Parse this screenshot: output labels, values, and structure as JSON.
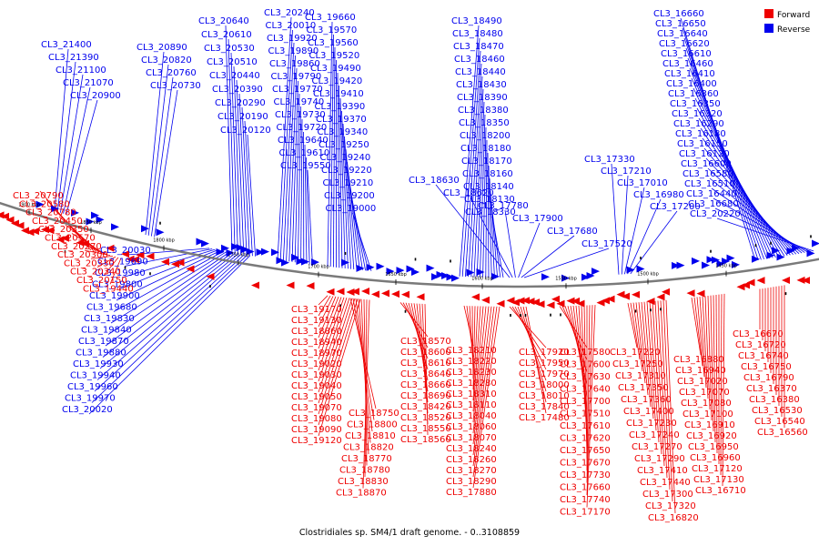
{
  "colors": {
    "forward": "#ee0000",
    "reverse": "#0000ee",
    "backbone": "#7a7a7a",
    "tick": "#000000"
  },
  "legend": [
    {
      "name": "Forward",
      "color": "#ee0000"
    },
    {
      "name": "Reverse",
      "color": "#0000ee"
    }
  ],
  "caption": "Clostridiales sp. SM4/1 draft genome. - 0..3108859",
  "axis": {
    "unit": "kbp",
    "ticks": [
      1900,
      1850,
      1800,
      1750,
      1700,
      1650,
      1600,
      1550,
      1500,
      1450
    ]
  },
  "reverse_labels": [
    "CL3_21400",
    "CL3_21390",
    "CL3_21100",
    "CL3_21070",
    "CL3_20900",
    "CL3_20890",
    "CL3_20820",
    "CL3_20760",
    "CL3_20730",
    "CL3_20640",
    "CL3_20610",
    "CL3_20530",
    "CL3_20510",
    "CL3_20440",
    "CL3_20390",
    "CL3_20290",
    "CL3_20190",
    "CL3_20120",
    "CL3_20240",
    "CL3_20010",
    "CL3_19920",
    "CL3_19890",
    "CL3_19860",
    "CL3_19790",
    "CL3_19770",
    "CL3_19740",
    "CL3_19730",
    "CL3_19720",
    "CL3_19640",
    "CL3_19610",
    "CL3_19550",
    "CL3_19660",
    "CL3_19570",
    "CL3_19560",
    "CL3_19520",
    "CL3_19490",
    "CL3_19420",
    "CL3_19410",
    "CL3_19390",
    "CL3_19370",
    "CL3_19340",
    "CL3_19250",
    "CL3_19240",
    "CL3_19220",
    "CL3_19210",
    "CL3_19200",
    "CL3_19000",
    "CL3_18490",
    "CL3_18480",
    "CL3_18470",
    "CL3_18460",
    "CL3_18440",
    "CL3_18430",
    "CL3_18390",
    "CL3_18380",
    "CL3_18350",
    "CL3_18200",
    "CL3_18180",
    "CL3_18170",
    "CL3_18160",
    "CL3_18140",
    "CL3_18130",
    "CL3_18330",
    "CL3_18630",
    "CL3_18620",
    "CL3_17780",
    "CL3_17900",
    "CL3_17680",
    "CL3_17520",
    "CL3_17330",
    "CL3_17210",
    "CL3_17010",
    "CL3_16980",
    "CL3_17200",
    "CL3_16660",
    "CL3_16650",
    "CL3_16640",
    "CL3_16620",
    "CL3_16610",
    "CL3_16460",
    "CL3_16410",
    "CL3_16400",
    "CL3_16360",
    "CL3_16350",
    "CL3_16320",
    "CL3_16290",
    "CL3_16180",
    "CL3_16150",
    "CL3_16120",
    "CL3_16600",
    "CL3_16580",
    "CL3_16510",
    "CL3_16440",
    "CL3_16680",
    "CL3_20220",
    "CL3_20030",
    "CL3_19690",
    "CL3_19980",
    "CL3_19800",
    "CL3_19900",
    "CL3_19680",
    "CL3_19830",
    "CL3_19840",
    "CL3_19870",
    "CL3_19880",
    "CL3_19930",
    "CL3_19940",
    "CL3_19960",
    "CL3_19970",
    "CL3_20020"
  ],
  "forward_labels": [
    "CL3_20790",
    "CL3_20580",
    "CL3_20780",
    "CL3_20450",
    "CL3_20350",
    "CL3_20570",
    "CL3_20270",
    "CL3_20300",
    "CL3_20330",
    "CL3_20340",
    "CL3_20150",
    "CL3_19440",
    "CL3_19170",
    "CL3_19130",
    "CL3_18860",
    "CL3_18940",
    "CL3_18970",
    "CL3_19020",
    "CL3_19030",
    "CL3_19040",
    "CL3_19050",
    "CL3_19070",
    "CL3_19080",
    "CL3_19090",
    "CL3_19120",
    "CL3_18750",
    "CL3_18800",
    "CL3_18810",
    "CL3_18820",
    "CL3_18770",
    "CL3_18780",
    "CL3_18830",
    "CL3_18870",
    "CL3_18570",
    "CL3_18600",
    "CL3_18610",
    "CL3_18640",
    "CL3_18660",
    "CL3_18690",
    "CL3_18420",
    "CL3_18520",
    "CL3_18550",
    "CL3_18560",
    "CL3_18210",
    "CL3_18220",
    "CL3_18230",
    "CL3_18280",
    "CL3_18310",
    "CL3_18110",
    "CL3_18040",
    "CL3_18060",
    "CL3_18070",
    "CL3_18240",
    "CL3_18260",
    "CL3_18270",
    "CL3_18290",
    "CL3_17880",
    "CL3_17920",
    "CL3_17950",
    "CL3_17970",
    "CL3_18000",
    "CL3_18010",
    "CL3_17840",
    "CL3_17480",
    "CL3_17580",
    "CL3_17600",
    "CL3_17630",
    "CL3_17640",
    "CL3_17700",
    "CL3_17510",
    "CL3_17610",
    "CL3_17620",
    "CL3_17650",
    "CL3_17670",
    "CL3_17730",
    "CL3_17660",
    "CL3_17740",
    "CL3_17170",
    "CL3_17220",
    "CL3_17250",
    "CL3_17310",
    "CL3_17350",
    "CL3_17360",
    "CL3_17400",
    "CL3_17230",
    "CL3_17240",
    "CL3_17270",
    "CL3_17290",
    "CL3_17410",
    "CL3_17440",
    "CL3_17300",
    "CL3_17320",
    "CL3_16820",
    "CL3_16880",
    "CL3_16940",
    "CL3_17020",
    "CL3_17070",
    "CL3_17080",
    "CL3_17100",
    "CL3_16910",
    "CL3_16920",
    "CL3_16950",
    "CL3_16960",
    "CL3_17120",
    "CL3_17130",
    "CL3_16710",
    "CL3_16670",
    "CL3_16720",
    "CL3_16740",
    "CL3_16750",
    "CL3_16790",
    "CL3_16370",
    "CL3_16380",
    "CL3_16530",
    "CL3_16540",
    "CL3_16560"
  ]
}
